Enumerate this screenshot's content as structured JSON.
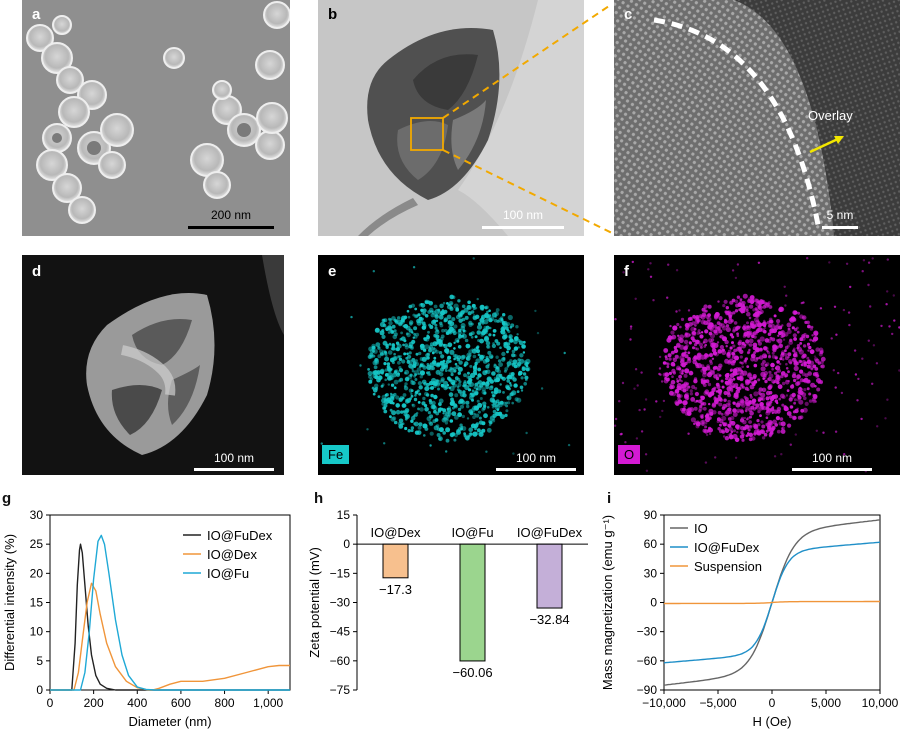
{
  "panels": {
    "a": {
      "label": "a",
      "scale": "200 nm"
    },
    "b": {
      "label": "b",
      "scale": "100 nm"
    },
    "c": {
      "label": "c",
      "scale": "5 nm",
      "annotation": "Overlay"
    },
    "d": {
      "label": "d",
      "scale": "100 nm"
    },
    "e": {
      "label": "e",
      "scale": "100 nm",
      "element": "Fe"
    },
    "f": {
      "label": "f",
      "scale": "100 nm",
      "element": "O"
    },
    "g": {
      "label": "g"
    },
    "h": {
      "label": "h"
    },
    "i": {
      "label": "i"
    }
  },
  "colors": {
    "fe_map": "#16c8c8",
    "o_map": "#d41ad4",
    "box": "#f2a900",
    "arrow": "#f2e600"
  },
  "chart_data": [
    {
      "id": "g",
      "type": "line",
      "xlabel": "Diameter (nm)",
      "ylabel": "Differential intensity (%)",
      "xlim": [
        0,
        1100
      ],
      "ylim": [
        0,
        30
      ],
      "xticks": [
        0,
        200,
        400,
        600,
        800,
        1000
      ],
      "xtick_labels": [
        "0",
        "200",
        "400",
        "600",
        "800",
        "1,000"
      ],
      "yticks": [
        0,
        5,
        10,
        15,
        20,
        25,
        30
      ],
      "legend": "top-right",
      "series": [
        {
          "name": "IO@FuDex",
          "color": "#222222",
          "x": [
            0,
            100,
            115,
            125,
            135,
            140,
            148,
            160,
            175,
            190,
            210,
            230,
            260,
            300,
            1100
          ],
          "y": [
            0,
            0,
            8,
            18,
            24,
            25,
            23.5,
            18,
            11,
            6,
            2.5,
            1,
            0.3,
            0,
            0
          ]
        },
        {
          "name": "IO@Dex",
          "color": "#f0953a",
          "x": [
            0,
            110,
            130,
            150,
            170,
            190,
            210,
            230,
            260,
            300,
            350,
            400,
            450,
            470,
            500,
            550,
            600,
            700,
            800,
            900,
            1000,
            1050,
            1100
          ],
          "y": [
            0,
            0,
            3,
            9,
            15,
            18.3,
            17,
            13,
            8,
            4,
            1.5,
            0.4,
            0,
            0,
            0.3,
            1,
            1.5,
            1.5,
            2,
            3,
            4,
            4.2,
            4.2
          ]
        },
        {
          "name": "IO@Fu",
          "color": "#1fa9d6",
          "x": [
            0,
            140,
            160,
            180,
            200,
            220,
            235,
            250,
            270,
            300,
            330,
            360,
            400,
            440,
            480,
            1100
          ],
          "y": [
            0,
            0,
            3,
            10,
            19,
            25.5,
            26.5,
            25,
            20,
            12,
            6,
            2.5,
            0.5,
            0.1,
            0,
            0
          ]
        }
      ]
    },
    {
      "id": "h",
      "type": "bar",
      "ylabel": "Zeta potential (mV)",
      "ylim": [
        -75,
        15
      ],
      "yticks": [
        15,
        0,
        -15,
        -30,
        -45,
        -60,
        -75
      ],
      "categories": [
        "IO@Dex",
        "IO@Fu",
        "IO@FuDex"
      ],
      "values": [
        -17.3,
        -60.06,
        -32.84
      ],
      "value_labels": [
        "−17.3",
        "−60.06",
        "−32.84"
      ],
      "colors": [
        "#f7c08e",
        "#9bd58e",
        "#c4afd8"
      ]
    },
    {
      "id": "i",
      "type": "line",
      "xlabel": "H (Oe)",
      "ylabel": "Mass magnetization (emu g⁻¹)",
      "xlim": [
        -10000,
        10000
      ],
      "ylim": [
        -90,
        90
      ],
      "xticks": [
        -10000,
        -5000,
        0,
        5000,
        10000
      ],
      "xtick_labels": [
        "−10,000",
        "−5,000",
        "0",
        "5,000",
        "10,000"
      ],
      "yticks": [
        90,
        60,
        30,
        0,
        -30,
        -60,
        -90
      ],
      "legend": "top-left",
      "series": [
        {
          "name": "IO",
          "color": "#666666",
          "ms": 85,
          "h0": 2000
        },
        {
          "name": "IO@FuDex",
          "color": "#1f8fc8",
          "ms": 62,
          "h0": 1500
        },
        {
          "name": "Suspension",
          "color": "#f0953a",
          "ms": 1,
          "h0": 1000
        }
      ]
    }
  ]
}
